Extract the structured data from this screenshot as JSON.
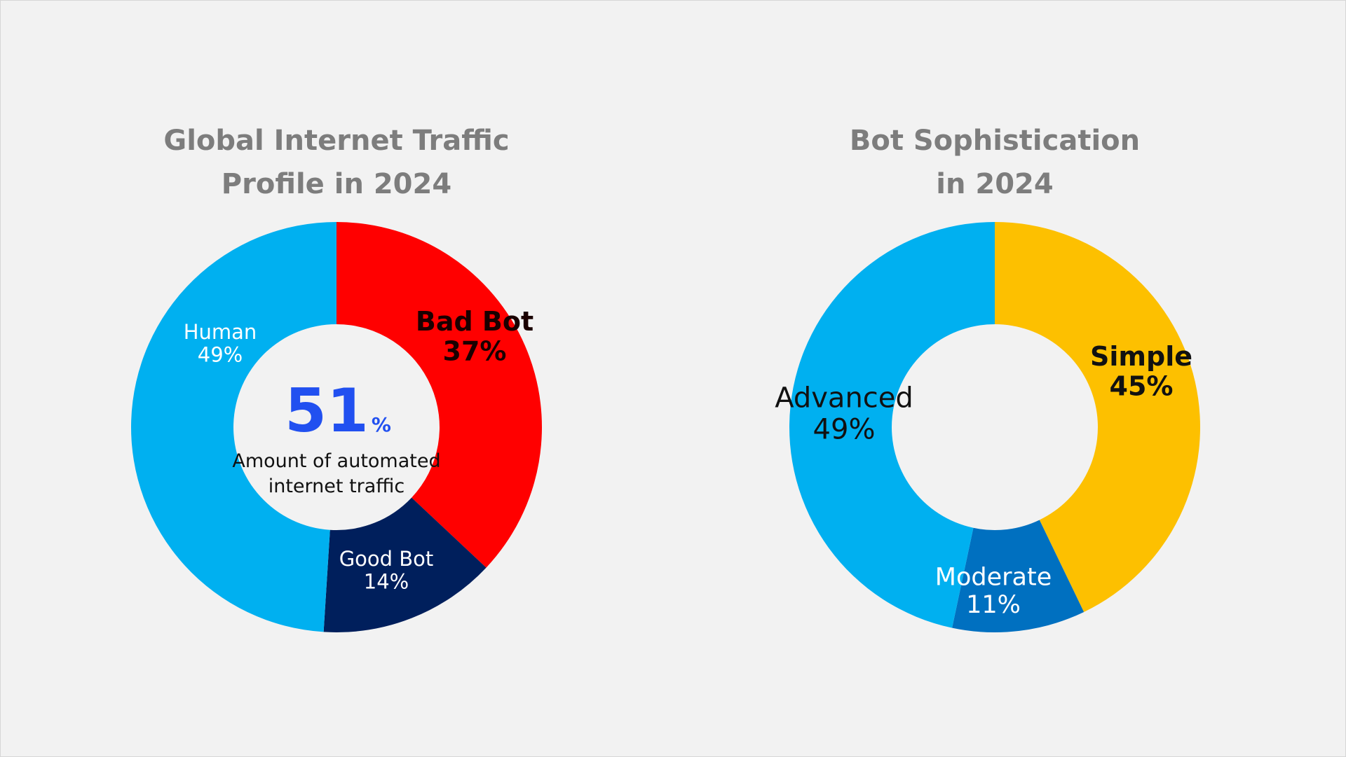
{
  "chart_data": [
    {
      "type": "pie",
      "donut": true,
      "title_lines": [
        "Global Internet Traffic",
        "Profile in 2024"
      ],
      "slices": [
        {
          "label": "Bad Bot",
          "value": 37,
          "value_label": "37%",
          "color": "#ff0000",
          "text_color": "#1a0000",
          "bold": true
        },
        {
          "label": "Good Bot",
          "value": 14,
          "value_label": "14%",
          "color": "#001f5c",
          "text_color": "#ffffff",
          "bold": false
        },
        {
          "label": "Human",
          "value": 49,
          "value_label": "49%",
          "color": "#00b0f0",
          "text_color": "#ffffff",
          "bold": false
        }
      ],
      "center": {
        "big_value": "51",
        "big_unit": "%",
        "big_color": "#2150f0",
        "caption_lines": [
          "Amount of automated",
          "internet traffic"
        ]
      }
    },
    {
      "type": "pie",
      "donut": true,
      "title_lines": [
        "Bot Sophistication",
        "in 2024"
      ],
      "slices": [
        {
          "label": "Simple",
          "value": 45,
          "value_label": "45%",
          "color": "#fdc000",
          "text_color": "#111111",
          "bold": true
        },
        {
          "label": "Moderate",
          "value": 11,
          "value_label": "11%",
          "color": "#0070c0",
          "text_color": "#ffffff",
          "bold": false
        },
        {
          "label": "Advanced",
          "value": 49,
          "value_label": "49%",
          "color": "#00b0f0",
          "text_color": "#111111",
          "bold": false
        }
      ]
    }
  ]
}
